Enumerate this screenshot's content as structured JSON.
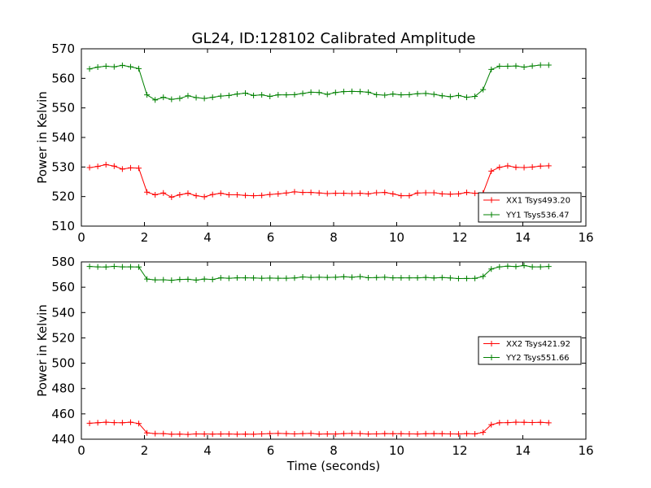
{
  "chart_data": [
    {
      "type": "line",
      "title": "GL24, ID:128102 Calibrated Amplitude",
      "xlabel": "",
      "ylabel": "Power in Kelvin",
      "xlim": [
        0,
        16
      ],
      "ylim": [
        510,
        570
      ],
      "xticks": [
        "0",
        "2",
        "4",
        "6",
        "8",
        "10",
        "12",
        "14",
        "16"
      ],
      "yticks": [
        "510",
        "520",
        "530",
        "540",
        "550",
        "560",
        "570"
      ],
      "grid": false,
      "legend_position": "lower-right",
      "x": [
        0.26,
        0.52,
        0.78,
        1.04,
        1.3,
        1.56,
        1.82,
        2.08,
        2.34,
        2.6,
        2.86,
        3.12,
        3.38,
        3.64,
        3.9,
        4.16,
        4.42,
        4.68,
        4.94,
        5.2,
        5.46,
        5.72,
        5.98,
        6.24,
        6.5,
        6.76,
        7.02,
        7.28,
        7.54,
        7.8,
        8.06,
        8.32,
        8.58,
        8.84,
        9.1,
        9.36,
        9.62,
        9.88,
        10.14,
        10.4,
        10.66,
        10.92,
        11.18,
        11.44,
        11.7,
        11.96,
        12.22,
        12.48,
        12.74,
        13.0,
        13.26,
        13.52,
        13.78,
        14.04,
        14.3,
        14.56,
        14.82
      ],
      "series": [
        {
          "name": "XX1 Tsys493.20",
          "color": "#ff0000",
          "values": [
            529.8,
            530.2,
            530.8,
            530.3,
            529.3,
            529.7,
            529.6,
            521.5,
            520.6,
            521.2,
            519.8,
            520.6,
            521.1,
            520.3,
            519.9,
            520.7,
            521.1,
            520.6,
            520.6,
            520.4,
            520.3,
            520.4,
            520.7,
            520.9,
            521.2,
            521.6,
            521.4,
            521.4,
            521.2,
            521.0,
            521.1,
            521.1,
            521.0,
            521.1,
            520.9,
            521.3,
            521.4,
            520.9,
            520.3,
            520.3,
            521.2,
            521.3,
            521.3,
            520.9,
            520.8,
            520.9,
            521.4,
            521.1,
            521.2,
            528.6,
            529.9,
            530.4,
            529.9,
            529.8,
            530.0,
            530.3,
            530.4
          ]
        },
        {
          "name": "YY1 Tsys536.47",
          "color": "#008000",
          "values": [
            563.2,
            563.8,
            564.1,
            563.9,
            564.4,
            563.9,
            563.3,
            554.4,
            552.7,
            553.6,
            552.9,
            553.2,
            554.1,
            553.5,
            553.2,
            553.6,
            554.0,
            554.2,
            554.7,
            555.0,
            554.2,
            554.4,
            553.9,
            554.4,
            554.4,
            554.5,
            554.9,
            555.3,
            555.2,
            554.6,
            555.2,
            555.5,
            555.6,
            555.5,
            555.3,
            554.5,
            554.3,
            554.7,
            554.4,
            554.5,
            554.8,
            554.9,
            554.6,
            554.1,
            553.8,
            554.2,
            553.6,
            553.9,
            556.2,
            563.0,
            564.1,
            564.1,
            564.2,
            563.8,
            564.2,
            564.5,
            564.5
          ]
        }
      ]
    },
    {
      "type": "line",
      "title": "",
      "xlabel": "Time (seconds)",
      "ylabel": "Power in Kelvin",
      "xlim": [
        0,
        16
      ],
      "ylim": [
        440,
        580
      ],
      "xticks": [
        "0",
        "2",
        "4",
        "6",
        "8",
        "10",
        "12",
        "14",
        "16"
      ],
      "yticks": [
        "440",
        "460",
        "480",
        "500",
        "520",
        "540",
        "560",
        "580"
      ],
      "grid": false,
      "legend_position": "center-right",
      "x": [
        0.26,
        0.52,
        0.78,
        1.04,
        1.3,
        1.56,
        1.82,
        2.08,
        2.34,
        2.6,
        2.86,
        3.12,
        3.38,
        3.64,
        3.9,
        4.16,
        4.42,
        4.68,
        4.94,
        5.2,
        5.46,
        5.72,
        5.98,
        6.24,
        6.5,
        6.76,
        7.02,
        7.28,
        7.54,
        7.8,
        8.06,
        8.32,
        8.58,
        8.84,
        9.1,
        9.36,
        9.62,
        9.88,
        10.14,
        10.4,
        10.66,
        10.92,
        11.18,
        11.44,
        11.7,
        11.96,
        12.22,
        12.48,
        12.74,
        13.0,
        13.26,
        13.52,
        13.78,
        14.04,
        14.3,
        14.56,
        14.82
      ],
      "series": [
        {
          "name": "XX2 Tsys421.92",
          "color": "#ff0000",
          "values": [
            452.6,
            453.0,
            453.4,
            453.1,
            453.0,
            453.4,
            452.4,
            445.0,
            444.4,
            444.4,
            443.9,
            444.0,
            443.8,
            444.2,
            444.1,
            444.0,
            444.1,
            444.1,
            443.9,
            444.0,
            443.9,
            444.2,
            444.4,
            444.6,
            444.4,
            444.2,
            444.4,
            444.6,
            444.0,
            444.2,
            444.1,
            444.4,
            444.6,
            444.4,
            444.1,
            444.2,
            444.4,
            444.3,
            444.3,
            444.2,
            444.1,
            444.3,
            444.4,
            444.3,
            444.2,
            444.1,
            444.4,
            444.2,
            445.4,
            451.5,
            453.0,
            453.1,
            453.4,
            453.3,
            453.2,
            453.3,
            452.9
          ]
        },
        {
          "name": "YY2 Tsys551.66",
          "color": "#008000",
          "values": [
            576.4,
            576.1,
            576.0,
            576.5,
            576.1,
            576.1,
            576.0,
            566.4,
            565.8,
            565.9,
            565.5,
            566.1,
            566.3,
            565.6,
            566.4,
            566.1,
            567.4,
            567.1,
            567.4,
            567.4,
            567.3,
            567.1,
            567.2,
            567.1,
            567.1,
            567.3,
            568.1,
            567.7,
            567.9,
            567.7,
            567.9,
            568.3,
            567.9,
            568.4,
            567.5,
            567.6,
            567.9,
            567.4,
            567.4,
            567.4,
            567.4,
            567.7,
            567.3,
            567.6,
            567.3,
            566.8,
            566.9,
            567.0,
            568.5,
            574.4,
            576.1,
            576.6,
            576.3,
            577.1,
            576.1,
            576.1,
            576.4
          ]
        }
      ]
    }
  ]
}
